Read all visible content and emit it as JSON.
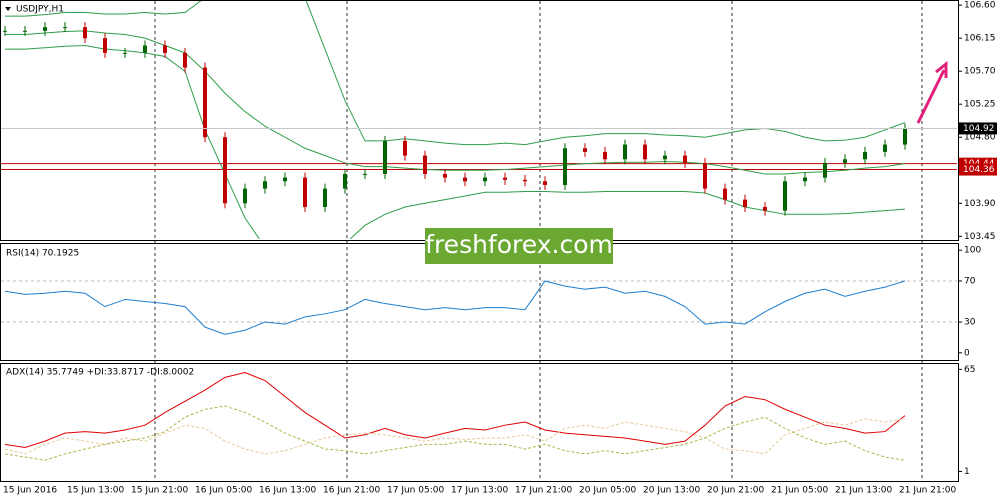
{
  "chart_data": [
    {
      "type": "candlestick",
      "title": "USDJPY,H1",
      "categories": [
        "15 Jun 2016",
        "15 Jun 13:00",
        "15 Jun 21:00",
        "16 Jun 05:00",
        "16 Jun 13:00",
        "16 Jun 21:00",
        "17 Jun 05:00",
        "17 Jun 13:00",
        "17 Jun 21:00",
        "20 Jun 05:00",
        "20 Jun 13:00",
        "20 Jun 21:00",
        "21 Jun 05:00",
        "21 Jun 13:00",
        "21 Jun 21:00"
      ],
      "close": [
        106.25,
        106.25,
        106.3,
        106.3,
        106.15,
        105.95,
        105.95,
        106.05,
        105.95,
        105.75,
        104.8,
        103.9,
        104.1,
        104.2,
        104.25,
        103.85,
        104.1,
        104.3,
        104.3,
        104.75,
        104.55,
        104.3,
        104.25,
        104.2,
        104.25,
        104.22,
        104.2,
        104.15,
        104.65,
        104.6,
        104.5,
        104.7,
        104.5,
        104.55,
        104.45,
        104.1,
        103.95,
        103.85,
        103.8,
        104.2,
        104.25,
        104.45,
        104.5,
        104.6,
        104.7,
        104.92
      ],
      "up_color": "#006400",
      "down_color": "#c00000",
      "bands": [
        {
          "color": "#2e9e4a",
          "values": [
            106.45,
            106.45,
            106.47,
            106.5,
            106.5,
            106.48,
            106.48,
            106.5,
            106.48,
            106.5,
            106.7,
            107.2,
            107.4,
            107.4,
            107.2,
            106.7,
            106.0,
            105.3,
            104.75,
            104.75,
            104.78,
            104.75,
            104.72,
            104.7,
            104.7,
            104.72,
            104.7,
            104.75,
            104.8,
            104.82,
            104.85,
            104.85,
            104.85,
            104.83,
            104.82,
            104.8,
            104.85,
            104.9,
            104.92,
            104.88,
            104.8,
            104.75,
            104.76,
            104.8,
            104.9,
            105.0
          ]
        },
        {
          "color": "#2e9e4a",
          "values": [
            106.2,
            106.2,
            106.22,
            106.24,
            106.25,
            106.22,
            106.2,
            106.15,
            106.05,
            105.95,
            105.7,
            105.4,
            105.15,
            104.95,
            104.8,
            104.65,
            104.55,
            104.45,
            104.4,
            104.4,
            104.38,
            104.36,
            104.35,
            104.35,
            104.35,
            104.36,
            104.38,
            104.4,
            104.42,
            104.44,
            104.45,
            104.46,
            104.46,
            104.47,
            104.46,
            104.44,
            104.4,
            104.35,
            104.3,
            104.3,
            104.32,
            104.33,
            104.35,
            104.38,
            104.4,
            104.44
          ]
        },
        {
          "color": "#2e9e4a",
          "values": [
            106.0,
            106.0,
            106.02,
            106.04,
            106.05,
            106.0,
            105.98,
            105.95,
            105.9,
            105.7,
            104.9,
            104.3,
            103.7,
            103.3,
            103.1,
            103.0,
            103.1,
            103.35,
            103.6,
            103.75,
            103.85,
            103.9,
            103.95,
            104.0,
            104.05,
            104.05,
            104.06,
            104.06,
            104.05,
            104.05,
            104.06,
            104.06,
            104.06,
            104.06,
            104.06,
            104.04,
            103.95,
            103.85,
            103.8,
            103.75,
            103.75,
            103.75,
            103.76,
            103.78,
            103.8,
            103.82
          ]
        }
      ],
      "ylim": [
        103.4,
        106.67
      ],
      "yticks": [
        {
          "value": 106.6,
          "label": "106.60"
        },
        106.15,
        {
          "value": 105.7,
          "label": "105.70"
        },
        105.25,
        {
          "value": 104.8,
          "label": "104.80"
        },
        {
          "value": 103.9,
          "label": "103.90"
        },
        103.45
      ],
      "hlines": [
        104.44,
        104.36
      ],
      "hline_color": "#c00000",
      "last_price": 104.92
    },
    {
      "type": "line",
      "title": "RSI(14) 70.1925",
      "color": "#1e7fd0",
      "values": [
        60,
        57,
        58,
        60,
        58,
        45,
        52,
        50,
        48,
        45,
        25,
        18,
        22,
        30,
        28,
        35,
        38,
        42,
        52,
        48,
        45,
        42,
        44,
        42,
        44,
        44,
        42,
        70,
        65,
        62,
        64,
        58,
        60,
        55,
        45,
        28,
        30,
        28,
        40,
        50,
        58,
        62,
        55,
        60,
        64,
        70
      ],
      "ylim": [
        -7,
        107
      ],
      "yticks": [
        100,
        70,
        30,
        0
      ],
      "levels": [
        70,
        30
      ]
    },
    {
      "type": "line",
      "title": "ADX(14) 35.7749 +DI:33.8717 -DI:8.0002",
      "series": [
        {
          "color": "#e00000",
          "values": [
            18,
            16,
            20,
            25,
            26,
            25,
            27,
            30,
            38,
            45,
            52,
            60,
            63,
            58,
            48,
            38,
            30,
            22,
            24,
            28,
            24,
            22,
            25,
            28,
            27,
            30,
            32,
            27,
            25,
            24,
            23,
            22,
            20,
            18,
            20,
            30,
            42,
            48,
            46,
            40,
            35,
            30,
            28,
            25,
            26,
            36
          ]
        },
        {
          "color": "#e6c89a",
          "values": [
            15,
            12,
            18,
            22,
            20,
            18,
            22,
            20,
            25,
            30,
            28,
            20,
            15,
            12,
            14,
            18,
            22,
            24,
            25,
            24,
            22,
            20,
            22,
            21,
            22,
            22,
            24,
            20,
            28,
            30,
            28,
            32,
            30,
            28,
            26,
            22,
            15,
            14,
            12,
            24,
            28,
            32,
            30,
            34,
            32,
            34
          ]
        },
        {
          "color": "#a8b84a",
          "values": [
            12,
            10,
            8,
            12,
            15,
            18,
            20,
            22,
            26,
            35,
            40,
            42,
            38,
            32,
            25,
            20,
            15,
            14,
            12,
            14,
            16,
            18,
            18,
            20,
            18,
            18,
            15,
            18,
            14,
            12,
            14,
            12,
            14,
            16,
            18,
            22,
            28,
            32,
            35,
            28,
            22,
            18,
            20,
            14,
            10,
            8
          ]
        }
      ],
      "ylim": [
        -5,
        69
      ],
      "yticks": [
        65,
        1
      ]
    }
  ],
  "watermark": "freshforex.com"
}
